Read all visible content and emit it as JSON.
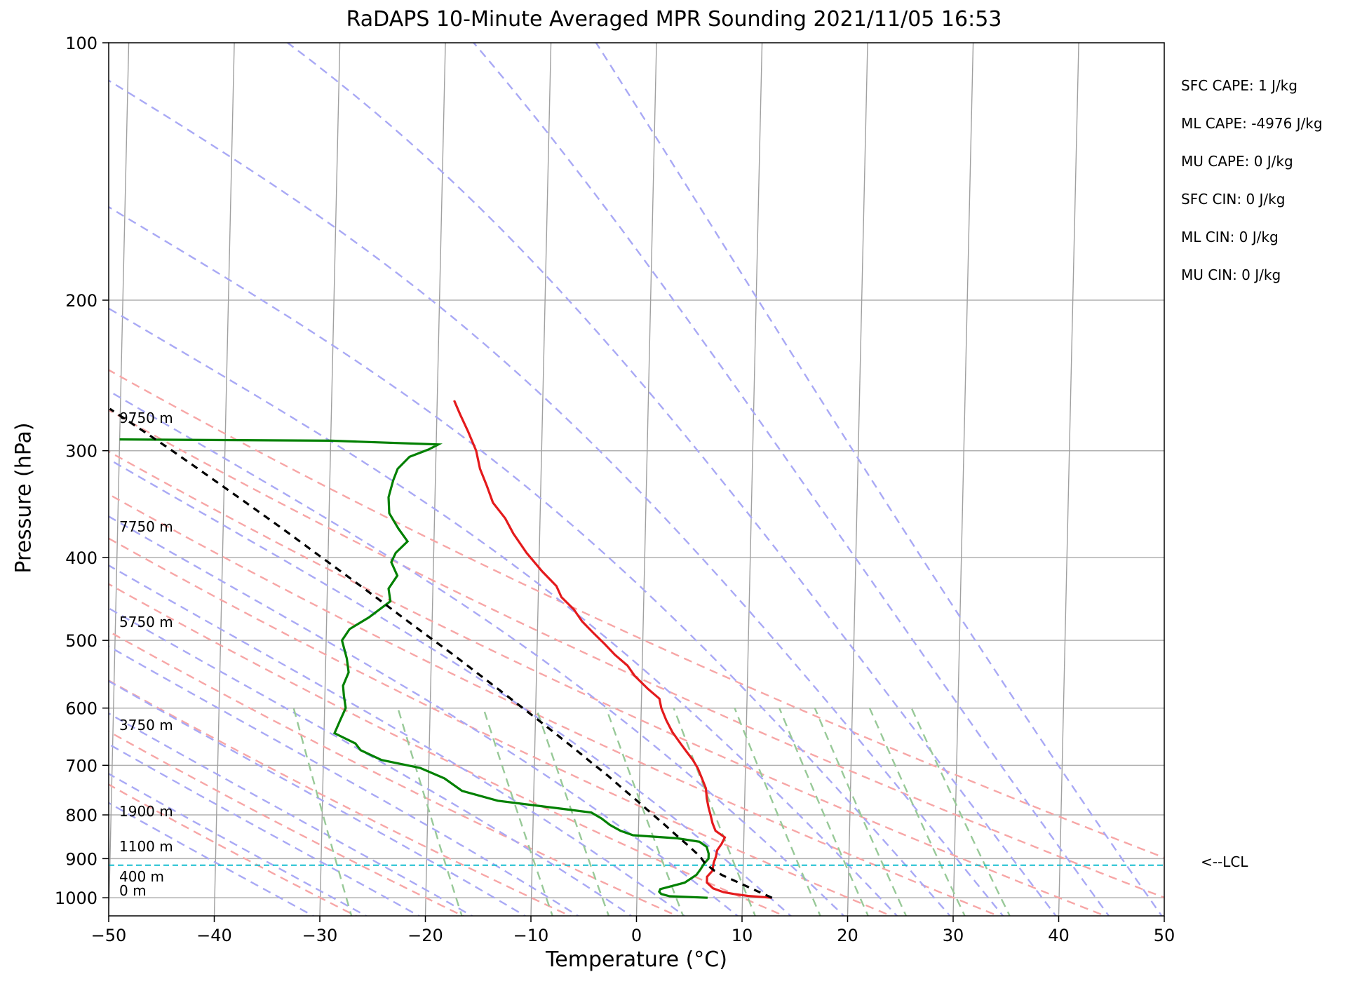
{
  "chart_data": {
    "type": "skew-t",
    "title": "RaDAPS 10-Minute Averaged MPR Sounding 2021/11/05 16:53",
    "xlabel": "Temperature (°C)",
    "ylabel": "Pressure (hPa)",
    "xlim": [
      -50,
      50
    ],
    "ylim": [
      1050,
      100
    ],
    "x_ticks": [
      "−50",
      "−40",
      "−30",
      "−20",
      "−10",
      "0",
      "10",
      "20",
      "30",
      "40",
      "50"
    ],
    "y_ticks": [
      {
        "p": 100,
        "label": "100"
      },
      {
        "p": 200,
        "label": "200"
      },
      {
        "p": 300,
        "label": "300"
      },
      {
        "p": 400,
        "label": "400"
      },
      {
        "p": 500,
        "label": "500"
      },
      {
        "p": 600,
        "label": "600"
      },
      {
        "p": 700,
        "label": "700"
      },
      {
        "p": 800,
        "label": "800"
      },
      {
        "p": 900,
        "label": "900"
      },
      {
        "p": 1000,
        "label": "1000"
      }
    ],
    "grid": true,
    "series": [
      {
        "kind": "temperature",
        "color": "#e41a1c",
        "points": [
          [
            1000,
            12.8
          ],
          [
            995,
            10.5
          ],
          [
            990,
            9.2
          ],
          [
            985,
            8.2
          ],
          [
            975,
            7.2
          ],
          [
            960,
            6.6
          ],
          [
            945,
            6.6
          ],
          [
            930,
            7.1
          ],
          [
            910,
            7.2
          ],
          [
            895,
            7.4
          ],
          [
            880,
            7.5
          ],
          [
            865,
            7.9
          ],
          [
            850,
            8.2
          ],
          [
            835,
            7.3
          ],
          [
            818,
            7.0
          ],
          [
            800,
            6.8
          ],
          [
            785,
            6.6
          ],
          [
            765,
            6.4
          ],
          [
            745,
            6.3
          ],
          [
            725,
            5.9
          ],
          [
            706,
            5.5
          ],
          [
            690,
            5.0
          ],
          [
            675,
            4.4
          ],
          [
            660,
            3.8
          ],
          [
            640,
            3.0
          ],
          [
            620,
            2.4
          ],
          [
            600,
            1.9
          ],
          [
            585,
            1.7
          ],
          [
            570,
            0.6
          ],
          [
            550,
            -0.7
          ],
          [
            535,
            -1.4
          ],
          [
            520,
            -2.6
          ],
          [
            505,
            -3.6
          ],
          [
            490,
            -4.7
          ],
          [
            475,
            -5.8
          ],
          [
            460,
            -6.6
          ],
          [
            445,
            -7.8
          ],
          [
            432,
            -8.3
          ],
          [
            415,
            -9.7
          ],
          [
            395,
            -11.2
          ],
          [
            375,
            -12.5
          ],
          [
            360,
            -13.3
          ],
          [
            345,
            -14.5
          ],
          [
            330,
            -15.1
          ],
          [
            315,
            -15.8
          ],
          [
            300,
            -16.2
          ],
          [
            285,
            -17.0
          ],
          [
            272,
            -17.8
          ],
          [
            262,
            -18.4
          ]
        ]
      },
      {
        "kind": "dewpoint",
        "color": "#008000",
        "points": [
          [
            1000,
            6.7
          ],
          [
            996,
            3.1
          ],
          [
            990,
            2.3
          ],
          [
            984,
            2.1
          ],
          [
            977,
            2.2
          ],
          [
            960,
            4.5
          ],
          [
            940,
            5.6
          ],
          [
            925,
            6.0
          ],
          [
            912,
            6.3
          ],
          [
            900,
            6.7
          ],
          [
            888,
            6.7
          ],
          [
            872,
            6.5
          ],
          [
            860,
            5.8
          ],
          [
            852,
            3.7
          ],
          [
            845,
            -0.5
          ],
          [
            835,
            -1.7
          ],
          [
            822,
            -2.7
          ],
          [
            808,
            -3.5
          ],
          [
            795,
            -4.5
          ],
          [
            788,
            -6.9
          ],
          [
            770,
            -13.4
          ],
          [
            750,
            -16.8
          ],
          [
            725,
            -18.5
          ],
          [
            705,
            -20.8
          ],
          [
            690,
            -24.5
          ],
          [
            672,
            -26.5
          ],
          [
            660,
            -27.0
          ],
          [
            642,
            -29.0
          ],
          [
            620,
            -28.5
          ],
          [
            600,
            -28.0
          ],
          [
            580,
            -28.2
          ],
          [
            565,
            -28.3
          ],
          [
            545,
            -27.8
          ],
          [
            525,
            -28.0
          ],
          [
            500,
            -28.5
          ],
          [
            485,
            -27.8
          ],
          [
            470,
            -26.0
          ],
          [
            450,
            -24.0
          ],
          [
            435,
            -24.2
          ],
          [
            420,
            -23.4
          ],
          [
            405,
            -24.0
          ],
          [
            395,
            -23.6
          ],
          [
            383,
            -22.5
          ],
          [
            370,
            -23.4
          ],
          [
            355,
            -24.3
          ],
          [
            340,
            -24.4
          ],
          [
            325,
            -24.0
          ],
          [
            315,
            -23.6
          ],
          [
            305,
            -22.5
          ],
          [
            299,
            -20.7
          ],
          [
            295,
            -19.8
          ],
          [
            292,
            -30.0
          ],
          [
            291,
            -50.0
          ]
        ]
      },
      {
        "kind": "parcel",
        "color": "#000000",
        "points": [
          [
            1000,
            12.8
          ],
          [
            985,
            11.6
          ],
          [
            970,
            10.4
          ],
          [
            955,
            9.2
          ],
          [
            942,
            8.1
          ],
          [
            930,
            7.3
          ],
          [
            912,
            6.4
          ],
          [
            895,
            5.9
          ],
          [
            870,
            4.8
          ],
          [
            845,
            3.6
          ],
          [
            820,
            2.4
          ],
          [
            795,
            1.1
          ],
          [
            770,
            -0.2
          ],
          [
            745,
            -1.6
          ],
          [
            720,
            -3.0
          ],
          [
            695,
            -4.6
          ],
          [
            670,
            -6.2
          ],
          [
            645,
            -7.9
          ],
          [
            620,
            -9.7
          ],
          [
            595,
            -11.6
          ],
          [
            570,
            -13.6
          ],
          [
            545,
            -15.7
          ],
          [
            520,
            -17.9
          ],
          [
            495,
            -20.3
          ],
          [
            470,
            -22.8
          ],
          [
            445,
            -25.4
          ],
          [
            420,
            -28.2
          ],
          [
            395,
            -31.2
          ],
          [
            370,
            -34.4
          ],
          [
            345,
            -37.9
          ],
          [
            320,
            -41.7
          ],
          [
            300,
            -45.0
          ],
          [
            285,
            -47.7
          ],
          [
            268,
            -51.0
          ]
        ]
      }
    ],
    "lcl_pressure": 916,
    "lcl_label": "<--LCL",
    "height_labels": [
      {
        "p": 1000,
        "label": "0 m"
      },
      {
        "p": 963,
        "label": "400 m"
      },
      {
        "p": 887,
        "label": "1100 m"
      },
      {
        "p": 807,
        "label": "1900 m"
      },
      {
        "p": 640,
        "label": "3750 m"
      },
      {
        "p": 485,
        "label": "5750 m"
      },
      {
        "p": 375,
        "label": "7750 m"
      },
      {
        "p": 280,
        "label": "9750 m"
      }
    ],
    "indices": [
      "SFC CAPE: 1 J/kg",
      "ML CAPE: -4976 J/kg",
      "MU CAPE: 0 J/kg",
      "SFC CIN: 0 J/kg",
      "ML CIN: 0 J/kg",
      "MU CIN: 0 J/kg"
    ],
    "reference_lines": {
      "isotherms": {
        "color": "#a0a0a0"
      },
      "dry_adiabats": {
        "color": "#f7a6a6",
        "dash": "dashed"
      },
      "moist_adiabats": {
        "color": "#a9a9f5",
        "dash": "dashed"
      },
      "mixing_ratios": {
        "color": "#98c998",
        "dash": "dashed"
      },
      "lcl_line": {
        "color": "#17becf",
        "dash": "dashed"
      }
    }
  }
}
